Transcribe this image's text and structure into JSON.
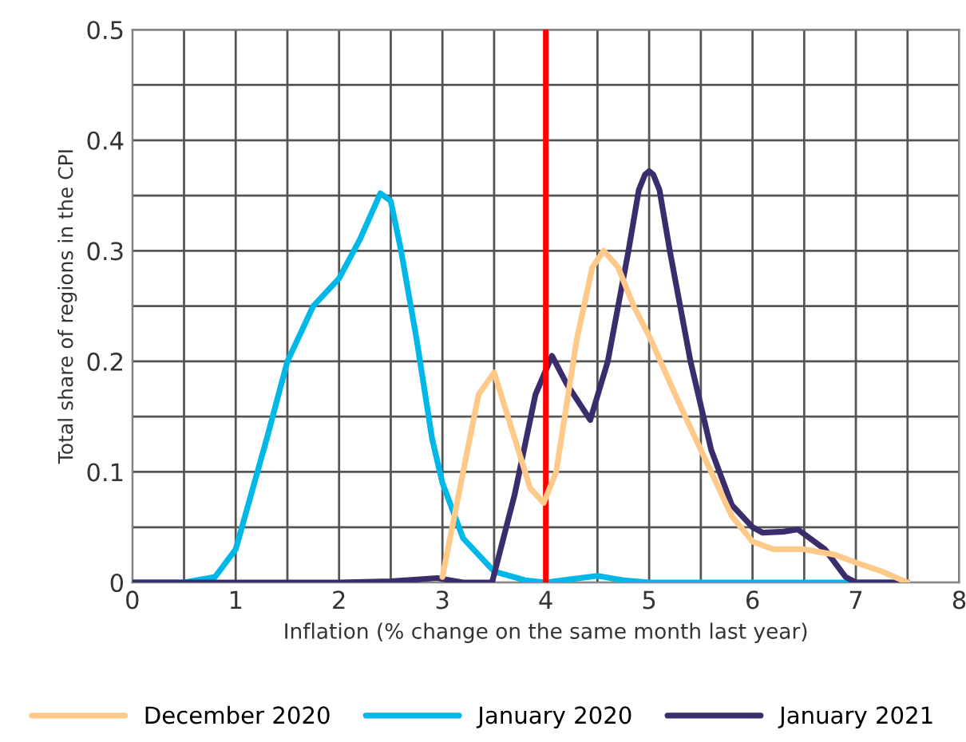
{
  "chart_data": {
    "type": "line",
    "xlabel": "Inflation (% change on the same month last year)",
    "ylabel": "Total share of regions in the CPI",
    "xlim": [
      0,
      8
    ],
    "ylim": [
      0,
      0.5
    ],
    "xticks": [
      0,
      {
        "value": 0.5,
        "label": null
      },
      1,
      {
        "value": 1.5,
        "label": null
      },
      2,
      {
        "value": 2.5,
        "label": null
      },
      3,
      {
        "value": 3.5,
        "label": null
      },
      4,
      {
        "value": 4.5,
        "label": null
      },
      5,
      {
        "value": 5.5,
        "label": null
      },
      6,
      {
        "value": 6.5,
        "label": null
      },
      7,
      {
        "value": 7.5,
        "label": null
      },
      8
    ],
    "yticks": [
      0,
      {
        "value": 0.05,
        "label": null
      },
      0.1,
      {
        "value": 0.15,
        "label": null
      },
      0.2,
      {
        "value": 0.25,
        "label": null
      },
      0.3,
      {
        "value": 0.35,
        "label": null
      },
      0.4,
      {
        "value": 0.45,
        "label": null
      },
      0.5
    ],
    "grid": true,
    "legend": "bottom",
    "marker": "none",
    "line_style": "solid",
    "ref_lines": [
      {
        "axis": "x",
        "value": 4,
        "color": "#ff0000"
      }
    ],
    "series": [
      {
        "name": "December 2020",
        "color": "#ffc98a",
        "x": [
          3.0,
          3.2,
          3.35,
          3.5,
          3.7,
          3.85,
          3.98,
          4.1,
          4.3,
          4.45,
          4.56,
          4.7,
          4.85,
          5.0,
          5.3,
          5.6,
          5.8,
          6.0,
          6.2,
          6.5,
          6.8,
          7.0,
          7.25,
          7.5
        ],
        "values": [
          0.005,
          0.1,
          0.17,
          0.19,
          0.13,
          0.085,
          0.072,
          0.1,
          0.22,
          0.285,
          0.3,
          0.285,
          0.25,
          0.223,
          0.16,
          0.1,
          0.06,
          0.037,
          0.03,
          0.03,
          0.025,
          0.018,
          0.01,
          0
        ]
      },
      {
        "name": "January 2020",
        "color": "#00b8e8",
        "x": [
          0,
          0.5,
          0.8,
          1.0,
          1.15,
          1.3,
          1.5,
          1.75,
          2.0,
          2.2,
          2.4,
          2.5,
          2.6,
          2.75,
          2.9,
          3.0,
          3.2,
          3.5,
          3.8,
          4.0,
          4.25,
          4.5,
          4.75,
          5.0,
          6.0,
          7.0,
          7.5
        ],
        "values": [
          0,
          0,
          0.005,
          0.03,
          0.08,
          0.13,
          0.2,
          0.25,
          0.275,
          0.31,
          0.352,
          0.345,
          0.3,
          0.22,
          0.13,
          0.09,
          0.04,
          0.01,
          0.002,
          0,
          0.003,
          0.006,
          0.002,
          0,
          0,
          0,
          0
        ]
      },
      {
        "name": "January 2021",
        "color": "#3b2c6b",
        "x": [
          0,
          1,
          2,
          2.5,
          2.95,
          3.2,
          3.48,
          3.7,
          3.9,
          4.06,
          4.2,
          4.43,
          4.6,
          4.8,
          4.9,
          4.96,
          5.0,
          5.04,
          5.1,
          5.2,
          5.4,
          5.6,
          5.8,
          6.0,
          6.1,
          6.3,
          6.44,
          6.7,
          6.9,
          7.0,
          7.5
        ],
        "values": [
          0,
          0,
          0,
          0.001,
          0.004,
          0,
          0,
          0.08,
          0.17,
          0.205,
          0.18,
          0.147,
          0.2,
          0.3,
          0.355,
          0.369,
          0.372,
          0.369,
          0.355,
          0.3,
          0.2,
          0.12,
          0.07,
          0.05,
          0.045,
          0.046,
          0.048,
          0.03,
          0.005,
          0,
          0
        ]
      }
    ]
  }
}
